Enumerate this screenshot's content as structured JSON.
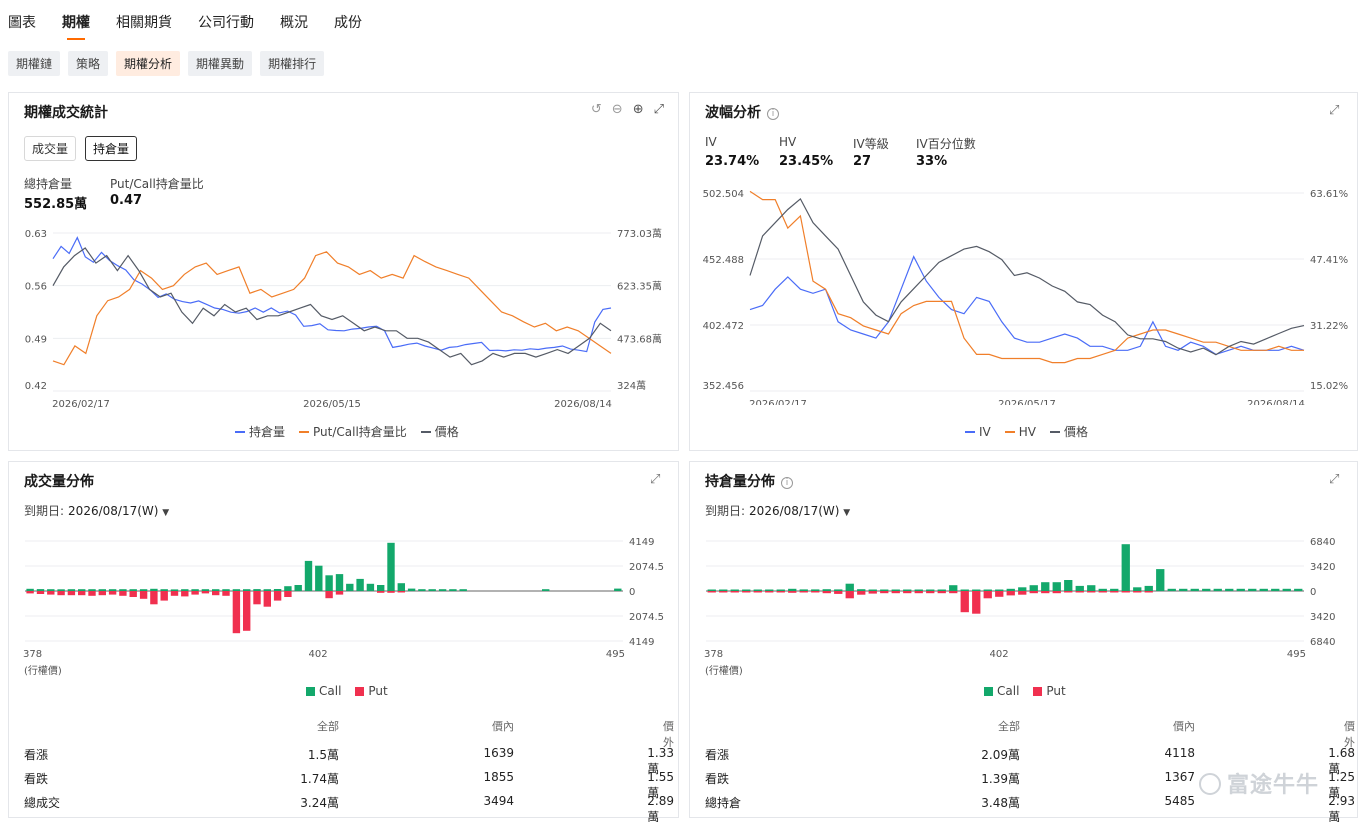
{
  "nav": {
    "tabs": [
      "圖表",
      "期權",
      "相關期貨",
      "公司行動",
      "概況",
      "成份"
    ],
    "active_tab": "期權"
  },
  "subnav": {
    "tabs": [
      "期權鏈",
      "策略",
      "期權分析",
      "期權異動",
      "期權排行"
    ],
    "active_tab": "期權分析"
  },
  "panel_stats": {
    "title": "期權成交統計",
    "toggles": [
      "成交量",
      "持倉量"
    ],
    "active_toggle": "持倉量",
    "total_oi_label": "總持倉量",
    "total_oi_value": "552.85萬",
    "pc_label": "Put/Call持倉量比",
    "pc_value": "0.47",
    "legend": [
      "持倉量",
      "Put/Call持倉量比",
      "價格"
    ]
  },
  "panel_vol": {
    "title": "波幅分析",
    "stats": [
      {
        "label": "IV",
        "value": "23.74%"
      },
      {
        "label": "HV",
        "value": "23.45%"
      },
      {
        "label": "IV等級",
        "value": "27"
      },
      {
        "label": "IV百分位數",
        "value": "33%"
      }
    ],
    "legend": [
      "IV",
      "HV",
      "價格"
    ]
  },
  "panel_volume_dist": {
    "title": "成交量分佈",
    "expiry_label": "到期日:",
    "expiry_value": "2026/08/17(W)",
    "x_unit": "(行權價)",
    "legend": [
      "Call",
      "Put"
    ],
    "table": {
      "headers": [
        "",
        "全部",
        "價內",
        "價外"
      ],
      "rows": [
        [
          "看漲",
          "1.5萬",
          "1639",
          "1.33萬"
        ],
        [
          "看跌",
          "1.74萬",
          "1855",
          "1.55萬"
        ],
        [
          "總成交",
          "3.24萬",
          "3494",
          "2.89萬"
        ]
      ]
    }
  },
  "panel_oi_dist": {
    "title": "持倉量分佈",
    "expiry_label": "到期日:",
    "expiry_value": "2026/08/17(W)",
    "x_unit": "(行權價)",
    "legend": [
      "Call",
      "Put"
    ],
    "table": {
      "headers": [
        "",
        "全部",
        "價內",
        "價外"
      ],
      "rows": [
        [
          "看漲",
          "2.09萬",
          "4118",
          "1.68萬"
        ],
        [
          "看跌",
          "1.39萬",
          "1367",
          "1.25萬"
        ],
        [
          "總持倉",
          "3.48萬",
          "5485",
          "2.93萬"
        ]
      ]
    }
  },
  "watermark": "富途牛牛",
  "colors": {
    "blue": "#4a6cf7",
    "orange": "#f07f2a",
    "gray": "#555b66",
    "call": "#13a86b",
    "put": "#f0304f",
    "accent": "#ff6a00"
  },
  "chart_data": [
    {
      "id": "oi_stats",
      "type": "line",
      "x_ticks": [
        "2026/02/17",
        "2026/05/15",
        "2026/08/14"
      ],
      "left_axis_ticks": [
        "0.63",
        "0.56",
        "0.49",
        "0.42"
      ],
      "right_axis_ticks": [
        "773.03萬",
        "623.35萬",
        "473.68萬",
        "324萬"
      ],
      "left_range": [
        0.42,
        0.63
      ],
      "right_range_wan": [
        324,
        773.03
      ],
      "series": [
        {
          "name": "持倉量",
          "axis": "right",
          "values": [
            700,
            735,
            715,
            760,
            705,
            690,
            718,
            695,
            680,
            668,
            640,
            628,
            612,
            590,
            600,
            585,
            578,
            574,
            580,
            570,
            560,
            556,
            548,
            545,
            550,
            560,
            548,
            560,
            546,
            551,
            540,
            508,
            510,
            515,
            498,
            496,
            495,
            500,
            502,
            506,
            508,
            495,
            448,
            452,
            457,
            460,
            452,
            446,
            440,
            448,
            450,
            456,
            459,
            462,
            439,
            440,
            438,
            441,
            440,
            444,
            442,
            446,
            448,
            452,
            443,
            440,
            436,
            520,
            556,
            560
          ]
        },
        {
          "name": "Put/Call持倉量比",
          "axis": "left",
          "values": [
            0.46,
            0.455,
            0.48,
            0.47,
            0.52,
            0.54,
            0.545,
            0.555,
            0.58,
            0.57,
            0.555,
            0.56,
            0.575,
            0.585,
            0.59,
            0.575,
            0.58,
            0.585,
            0.55,
            0.555,
            0.545,
            0.55,
            0.555,
            0.57,
            0.6,
            0.605,
            0.59,
            0.585,
            0.575,
            0.58,
            0.57,
            0.575,
            0.57,
            0.6,
            0.592,
            0.585,
            0.58,
            0.575,
            0.57,
            0.555,
            0.54,
            0.525,
            0.52,
            0.512,
            0.505,
            0.51,
            0.5,
            0.505,
            0.5,
            0.49,
            0.48,
            0.47
          ]
        },
        {
          "name": "價格",
          "axis": "left",
          "values": [
            0.56,
            0.585,
            0.6,
            0.61,
            0.59,
            0.6,
            0.58,
            0.6,
            0.58,
            0.555,
            0.545,
            0.55,
            0.525,
            0.51,
            0.53,
            0.52,
            0.535,
            0.525,
            0.53,
            0.515,
            0.52,
            0.52,
            0.525,
            0.53,
            0.535,
            0.52,
            0.515,
            0.52,
            0.51,
            0.5,
            0.505,
            0.5,
            0.5,
            0.49,
            0.49,
            0.485,
            0.475,
            0.465,
            0.47,
            0.455,
            0.46,
            0.47,
            0.465,
            0.47,
            0.47,
            0.465,
            0.47,
            0.475,
            0.47,
            0.48,
            0.49,
            0.51,
            0.5
          ]
        }
      ]
    },
    {
      "id": "volatility",
      "type": "line",
      "x_ticks": [
        "2026/02/17",
        "2026/05/17",
        "2026/08/14"
      ],
      "left_axis_ticks": [
        "502.504",
        "452.488",
        "402.472",
        "352.456"
      ],
      "right_axis_ticks": [
        "63.61%",
        "47.41%",
        "31.22%",
        "15.02%"
      ],
      "left_range": [
        352.456,
        502.504
      ],
      "right_range_pct": [
        15.02,
        63.61
      ],
      "series": [
        {
          "name": "IV",
          "axis": "right",
          "values": [
            35,
            36,
            40,
            43,
            40,
            39,
            40,
            32,
            30,
            29,
            28,
            32,
            40,
            48,
            42,
            38,
            35,
            34,
            38,
            37,
            32,
            28,
            27,
            27,
            28,
            29,
            28,
            26,
            26,
            25,
            25,
            26,
            32,
            26,
            25,
            27,
            26,
            24,
            25,
            26,
            25,
            25,
            25,
            26,
            25
          ]
        },
        {
          "name": "HV",
          "axis": "right",
          "values": [
            64,
            62,
            62,
            55,
            58,
            42,
            40,
            34,
            33,
            31,
            30,
            29,
            34,
            36,
            37,
            37,
            37,
            28,
            24,
            24,
            23,
            23,
            23,
            23,
            22,
            22,
            23,
            23,
            24,
            25,
            28,
            29,
            30,
            30,
            29,
            28,
            27,
            27,
            26,
            25,
            25,
            25,
            26,
            25,
            25
          ]
        },
        {
          "name": "價格",
          "axis": "left",
          "values": [
            440,
            470,
            480,
            490,
            498,
            480,
            470,
            460,
            440,
            420,
            410,
            405,
            420,
            430,
            440,
            450,
            455,
            460,
            462,
            458,
            452,
            440,
            442,
            438,
            432,
            428,
            420,
            418,
            410,
            405,
            395,
            392,
            392,
            390,
            385,
            382,
            385,
            380,
            386,
            390,
            388,
            392,
            396,
            400,
            402
          ]
        }
      ]
    },
    {
      "id": "volume_dist",
      "type": "bar",
      "x_ticks": [
        "378",
        "402",
        "495"
      ],
      "y_ticks": [
        "4149",
        "2074.5",
        "0",
        "2074.5",
        "4149"
      ],
      "y_max": 4149,
      "series": [
        {
          "name": "Call",
          "values": [
            180,
            160,
            150,
            140,
            150,
            150,
            150,
            150,
            150,
            150,
            150,
            150,
            180,
            150,
            130,
            150,
            150,
            150,
            150,
            150,
            150,
            150,
            160,
            150,
            170,
            400,
            500,
            2500,
            2100,
            1300,
            1400,
            600,
            1000,
            600,
            500,
            4000,
            650,
            200,
            150,
            150,
            150,
            150,
            150,
            0,
            0,
            0,
            0,
            0,
            0,
            0,
            150,
            0,
            0,
            0,
            0,
            0,
            0,
            200
          ]
        },
        {
          "name": "Put",
          "values": [
            200,
            250,
            300,
            350,
            350,
            350,
            400,
            350,
            300,
            400,
            500,
            650,
            1100,
            800,
            400,
            450,
            300,
            200,
            350,
            400,
            3500,
            3300,
            1100,
            1300,
            800,
            500,
            0,
            0,
            0,
            600,
            300,
            0,
            0,
            0,
            150,
            150,
            100,
            0,
            0,
            0,
            0,
            0,
            0,
            0,
            0,
            0,
            0,
            0,
            0,
            0,
            0,
            0,
            0,
            0,
            0,
            0,
            0,
            0
          ]
        }
      ]
    },
    {
      "id": "oi_dist",
      "type": "bar",
      "x_ticks": [
        "378",
        "402",
        "495"
      ],
      "y_ticks": [
        "6840",
        "3420",
        "0",
        "3420",
        "6840"
      ],
      "y_max": 6840,
      "series": [
        {
          "name": "Call",
          "values": [
            200,
            200,
            150,
            200,
            200,
            180,
            200,
            300,
            220,
            220,
            250,
            220,
            1000,
            250,
            150,
            150,
            150,
            150,
            200,
            150,
            150,
            800,
            200,
            150,
            150,
            150,
            300,
            500,
            800,
            1200,
            1200,
            1500,
            700,
            800,
            300,
            300,
            6400,
            500,
            700,
            3000,
            300,
            300,
            300,
            300,
            300,
            300,
            300,
            300,
            300,
            300,
            300,
            300
          ]
        },
        {
          "name": "Put",
          "values": [
            200,
            200,
            200,
            200,
            200,
            150,
            200,
            250,
            200,
            200,
            300,
            400,
            1000,
            500,
            350,
            300,
            300,
            300,
            300,
            300,
            300,
            300,
            2900,
            3100,
            1000,
            800,
            600,
            500,
            300,
            300,
            300,
            200,
            150,
            200,
            200,
            150,
            150,
            100,
            100,
            0,
            0,
            0,
            0,
            0,
            0,
            0,
            0,
            0,
            0,
            0,
            0,
            0
          ]
        }
      ]
    }
  ]
}
